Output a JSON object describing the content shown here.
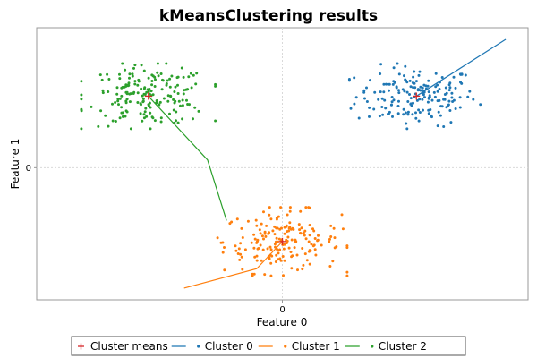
{
  "chart_data": {
    "type": "scatter",
    "title": "kMeansClustering results",
    "xlabel": "Feature 0",
    "ylabel": "Feature 1",
    "xlim": [
      -2.2,
      2.2
    ],
    "ylim": [
      -1.7,
      1.8
    ],
    "xticks": [
      {
        "value": 0,
        "label": "0"
      }
    ],
    "yticks": [
      {
        "value": 0,
        "label": "0"
      }
    ],
    "grid": true,
    "legend_position": "bottom",
    "cluster_means": {
      "name": "Cluster means",
      "color": "#d62728",
      "marker": "+",
      "points": [
        [
          -1.2,
          0.92
        ],
        [
          1.2,
          0.92
        ],
        [
          0.0,
          -0.95
        ]
      ]
    },
    "series": [
      {
        "name": "Cluster 0",
        "color": "#1f77b4",
        "center": [
          1.2,
          0.92
        ],
        "spread": [
          0.6,
          0.42
        ],
        "count": 180,
        "line": [
          [
            1.2,
            0.92
          ],
          [
            2.0,
            1.65
          ]
        ]
      },
      {
        "name": "Cluster 1",
        "color": "#ff7f0e",
        "center": [
          0.0,
          -0.95
        ],
        "spread": [
          0.58,
          0.44
        ],
        "count": 190,
        "line": [
          [
            0.0,
            -0.95
          ],
          [
            -0.23,
            -1.3
          ],
          [
            -0.88,
            -1.55
          ]
        ]
      },
      {
        "name": "Cluster 2",
        "color": "#2ca02c",
        "center": [
          -1.2,
          0.92
        ],
        "spread": [
          0.6,
          0.42
        ],
        "count": 190,
        "line": [
          [
            -1.2,
            0.92
          ],
          [
            -0.67,
            0.1
          ],
          [
            -0.5,
            -0.68
          ]
        ]
      }
    ]
  }
}
